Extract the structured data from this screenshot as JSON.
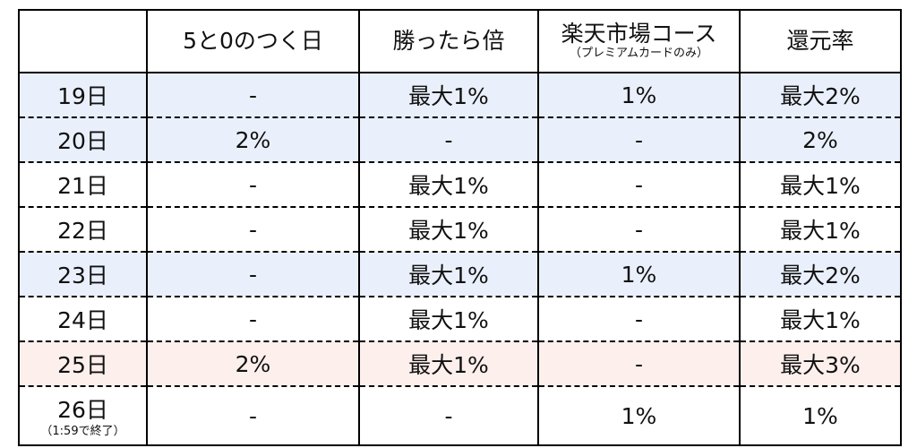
{
  "header": [
    {
      "label": "5と0のつく日"
    },
    {
      "label": "勝ったら倍"
    },
    {
      "label": "楽天市場コース",
      "note": "（プレミアムカードのみ）"
    },
    {
      "label": "還元率"
    }
  ],
  "rows": [
    {
      "day": "19日",
      "cells": [
        "-",
        "最大1%",
        "1%",
        "最大2%"
      ]
    },
    {
      "day": "20日",
      "cells": [
        "2%",
        "-",
        "-",
        "2%"
      ]
    },
    {
      "day": "21日",
      "cells": [
        "-",
        "最大1%",
        "-",
        "最大1%"
      ]
    },
    {
      "day": "22日",
      "cells": [
        "-",
        "最大1%",
        "-",
        "最大1%"
      ]
    },
    {
      "day": "23日",
      "cells": [
        "-",
        "最大1%",
        "1%",
        "最大2%"
      ]
    },
    {
      "day": "24日",
      "cells": [
        "-",
        "最大1%",
        "-",
        "最大1%"
      ]
    },
    {
      "day": "25日",
      "cells": [
        "2%",
        "最大1%",
        "-",
        "最大3%"
      ]
    },
    {
      "day": "26日",
      "note": "（1:59で終了）",
      "cells": [
        "-",
        "-",
        "1%",
        "1%"
      ]
    }
  ]
}
